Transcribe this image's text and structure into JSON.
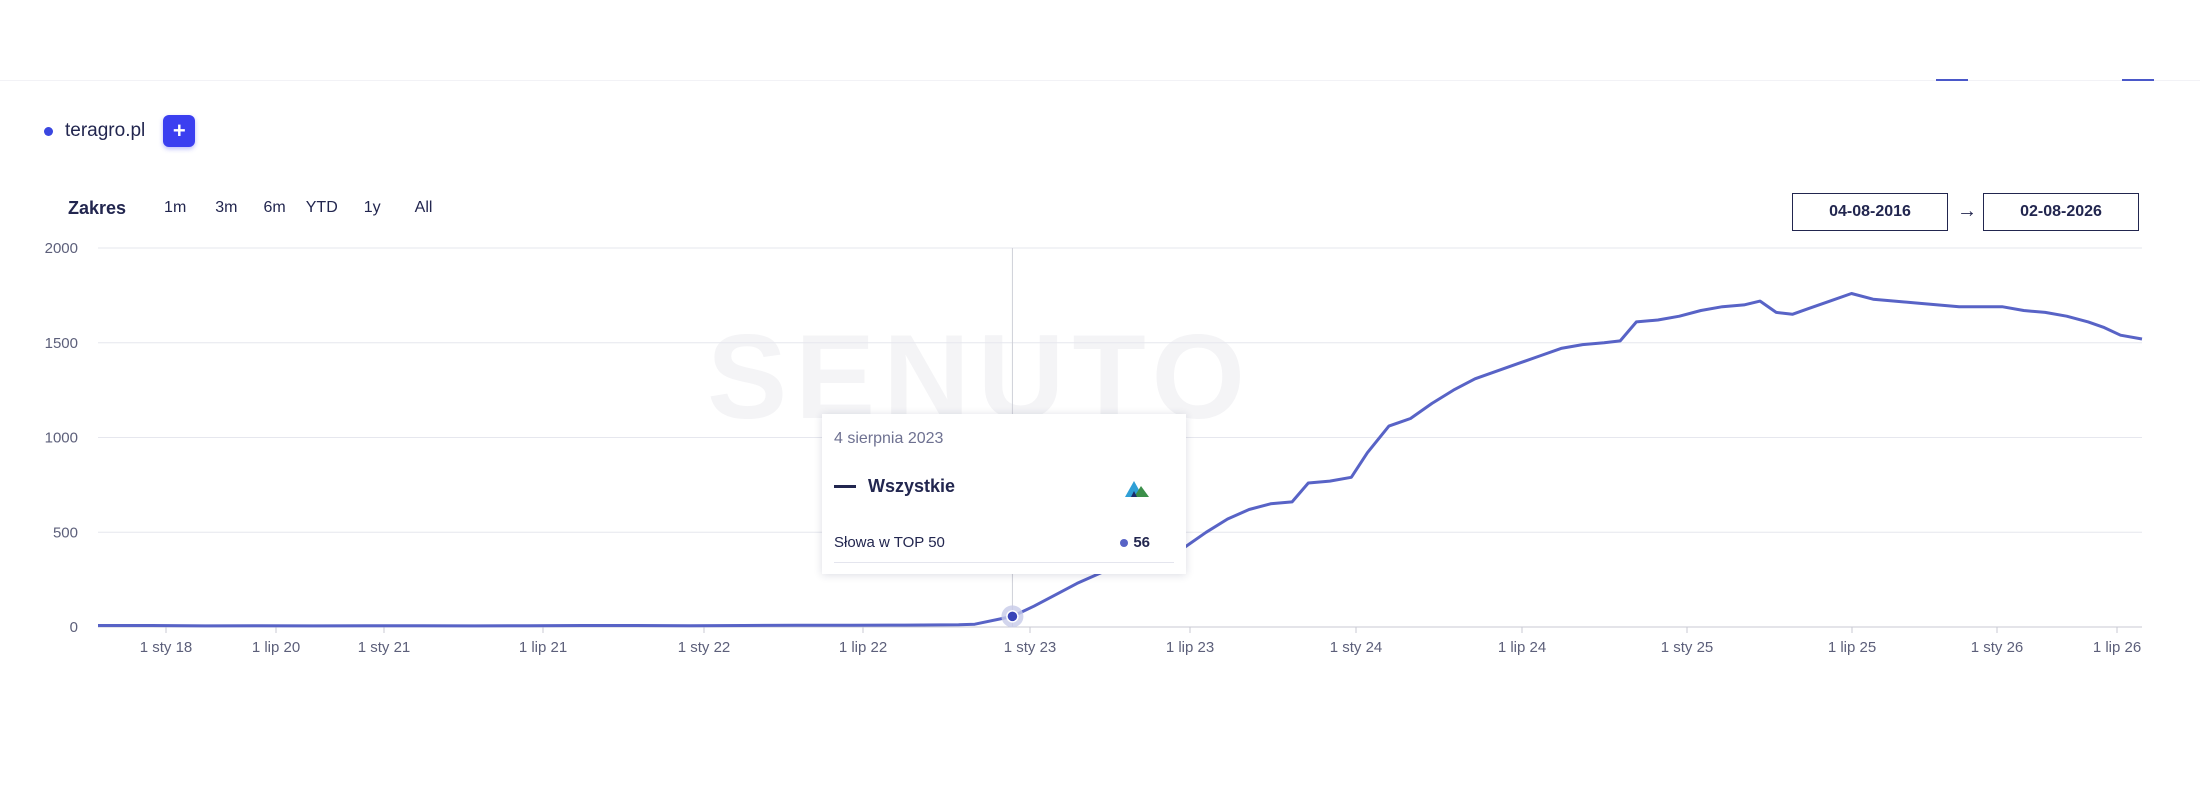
{
  "domain": {
    "label": "teragro.pl",
    "dot_color": "#3a47e0",
    "add_label": "+"
  },
  "range": {
    "title": "Zakres",
    "buttons": [
      "1m",
      "3m",
      "6m",
      "YTD",
      "1y",
      "All"
    ]
  },
  "dates": {
    "from": "04-08-2016",
    "arrow": "→",
    "to": "02-08-2026"
  },
  "watermark": "SENUTO",
  "tooltip": {
    "date": "4 sierpnia 2023",
    "series": "Wszystkie",
    "logo_icon": "mountain-logo-icon",
    "metric": "Słowa w TOP 50",
    "value": "56"
  },
  "colors": {
    "line": "#5863c6",
    "accent": "#3b3ff0",
    "text": "#22264f"
  },
  "chart_data": {
    "type": "line",
    "title": "",
    "xlabel": "",
    "ylabel": "",
    "ylim": [
      0,
      2000
    ],
    "y_ticks": [
      0,
      500,
      1000,
      1500,
      2000
    ],
    "x_ticks": [
      "1 sty 18",
      "1 lip 20",
      "1 sty 21",
      "1 lip 21",
      "1 sty 22",
      "1 lip 22",
      "1 sty 23",
      "1 lip 23",
      "1 sty 24",
      "1 lip 24",
      "1 sty 25",
      "1 lip 25",
      "1 sty 26",
      "1 lip 26"
    ],
    "grid": true,
    "series": [
      {
        "values": [
          [
            0,
            8
          ],
          [
            1,
            8
          ],
          [
            2,
            6
          ],
          [
            3,
            7
          ],
          [
            4,
            6
          ],
          [
            5,
            7
          ],
          [
            6,
            7
          ],
          [
            7,
            6
          ],
          [
            8,
            7
          ],
          [
            9,
            8
          ],
          [
            10,
            8
          ],
          [
            11,
            7
          ],
          [
            12,
            8
          ],
          [
            13,
            9
          ],
          [
            14,
            9
          ],
          [
            15,
            10
          ],
          [
            16,
            12
          ],
          [
            16.3,
            15
          ],
          [
            17,
            56
          ],
          [
            17.4,
            110
          ],
          [
            17.8,
            170
          ],
          [
            18.2,
            230
          ],
          [
            18.6,
            280
          ],
          [
            19,
            330
          ],
          [
            19.4,
            370
          ],
          [
            19.8,
            370
          ],
          [
            20.2,
            420
          ],
          [
            20.6,
            500
          ],
          [
            21,
            570
          ],
          [
            21.4,
            620
          ],
          [
            21.8,
            650
          ],
          [
            22.2,
            660
          ],
          [
            22.5,
            760
          ],
          [
            22.9,
            770
          ],
          [
            23.3,
            790
          ],
          [
            23.6,
            920
          ],
          [
            24,
            1060
          ],
          [
            24.4,
            1100
          ],
          [
            24.8,
            1180
          ],
          [
            25.2,
            1250
          ],
          [
            25.6,
            1310
          ],
          [
            26,
            1350
          ],
          [
            26.4,
            1390
          ],
          [
            26.8,
            1430
          ],
          [
            27.2,
            1470
          ],
          [
            27.6,
            1490
          ],
          [
            28,
            1500
          ],
          [
            28.3,
            1510
          ],
          [
            28.6,
            1610
          ],
          [
            29,
            1620
          ],
          [
            29.4,
            1640
          ],
          [
            29.8,
            1670
          ],
          [
            30.2,
            1690
          ],
          [
            30.6,
            1700
          ],
          [
            30.9,
            1720
          ],
          [
            31.2,
            1660
          ],
          [
            31.5,
            1650
          ],
          [
            31.8,
            1680
          ],
          [
            32.2,
            1720
          ],
          [
            32.6,
            1760
          ],
          [
            33,
            1730
          ],
          [
            33.4,
            1720
          ],
          [
            33.8,
            1710
          ],
          [
            34.2,
            1700
          ],
          [
            34.6,
            1690
          ],
          [
            35,
            1690
          ],
          [
            35.4,
            1690
          ],
          [
            35.8,
            1670
          ],
          [
            36.2,
            1660
          ],
          [
            36.6,
            1640
          ],
          [
            37,
            1610
          ],
          [
            37.3,
            1580
          ],
          [
            37.6,
            1540
          ],
          [
            38,
            1520
          ]
        ]
      }
    ],
    "highlight": {
      "x": 17,
      "y": 56
    }
  }
}
